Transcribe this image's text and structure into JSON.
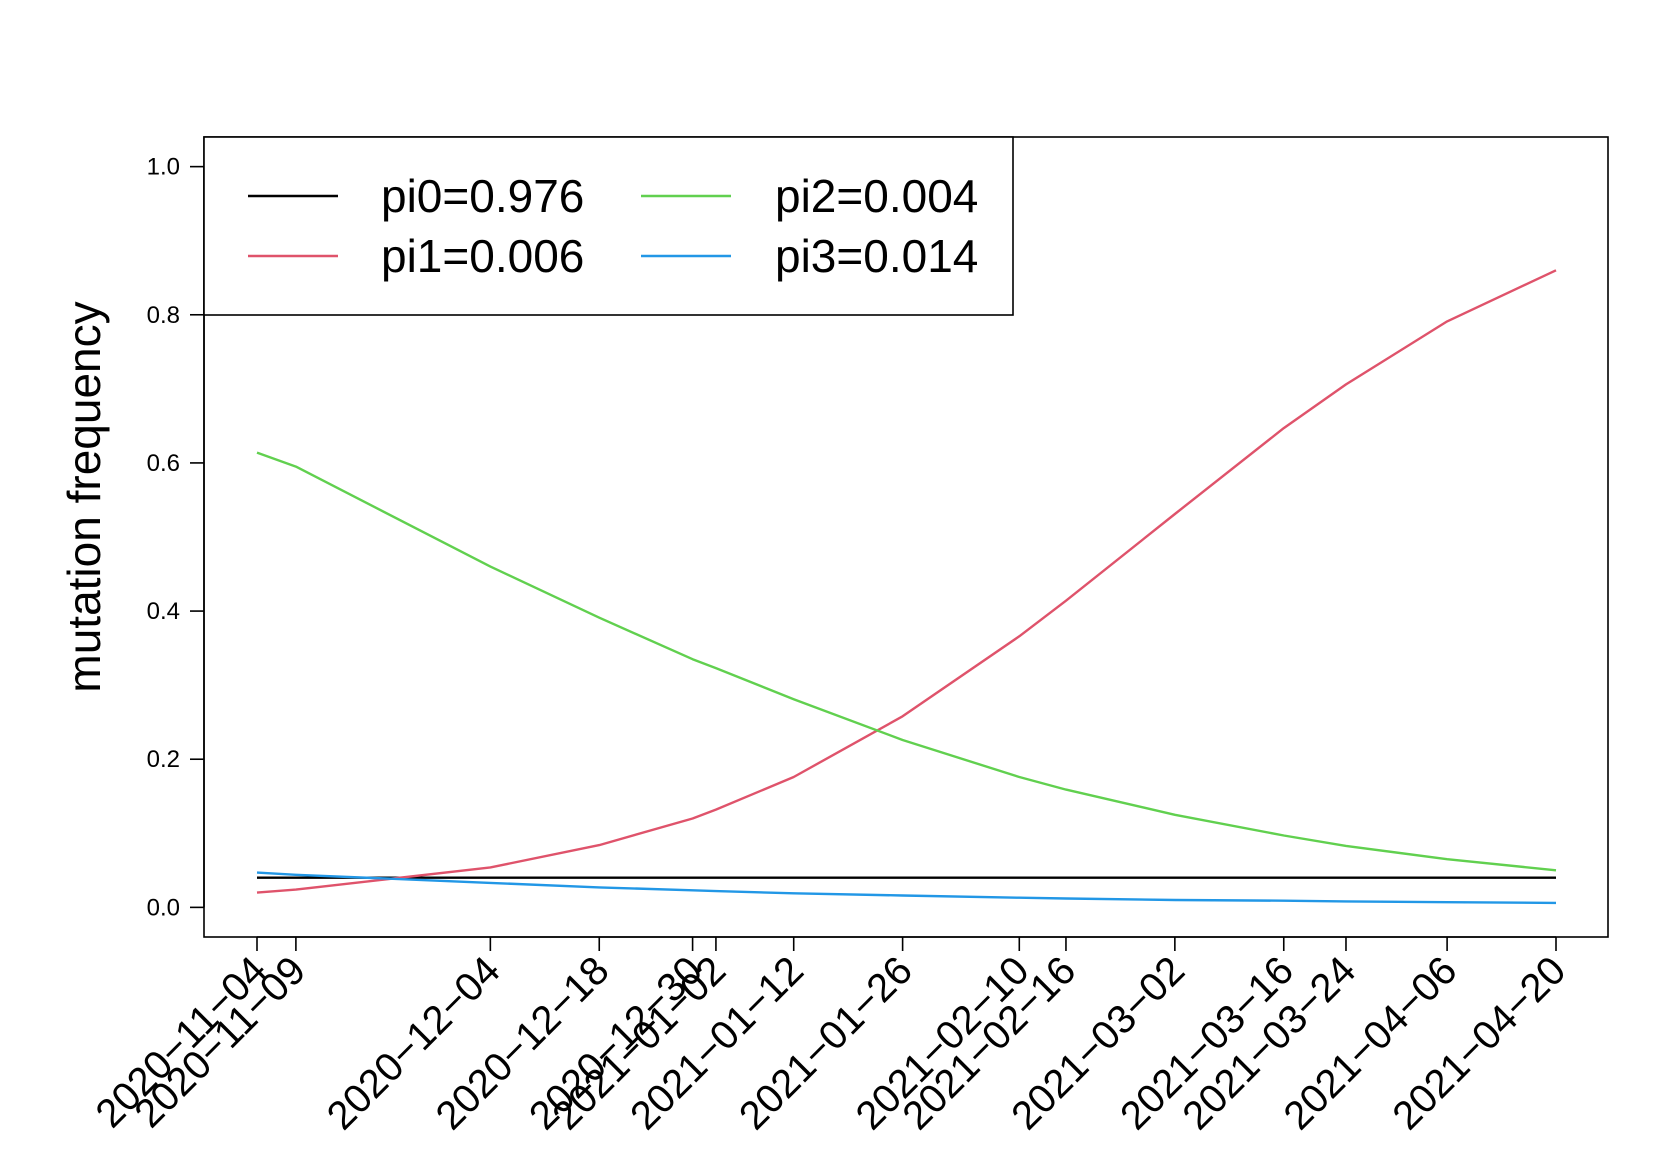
{
  "chart_data": {
    "type": "line",
    "title": "",
    "xlabel": "",
    "ylabel": "mutation frequency",
    "ylim": [
      -0.04,
      1.04
    ],
    "yticks": [
      "0.0",
      "0.2",
      "0.4",
      "0.6",
      "0.8",
      "1.0"
    ],
    "grid": false,
    "legend_position": "top-left",
    "x": [
      "2020-11-04",
      "2020-11-09",
      "2020-12-04",
      "2020-12-18",
      "2020-12-30",
      "2021-01-02",
      "2021-01-12",
      "2021-01-26",
      "2021-02-10",
      "2021-02-16",
      "2021-03-02",
      "2021-03-16",
      "2021-03-24",
      "2021-04-06",
      "2021-04-20"
    ],
    "series": [
      {
        "name": "pi0=0.976",
        "color": "#000000",
        "values": [
          0.04,
          0.04,
          0.04,
          0.04,
          0.04,
          0.04,
          0.04,
          0.04,
          0.04,
          0.04,
          0.04,
          0.04,
          0.04,
          0.04,
          0.04
        ]
      },
      {
        "name": "pi1=0.006",
        "color": "#DF536B",
        "values": [
          0.02,
          0.024,
          0.054,
          0.084,
          0.12,
          0.132,
          0.176,
          0.258,
          0.366,
          0.414,
          0.531,
          0.647,
          0.706,
          0.791,
          0.86
        ]
      },
      {
        "name": "pi2=0.004",
        "color": "#61D04F",
        "values": [
          0.614,
          0.595,
          0.46,
          0.391,
          0.335,
          0.323,
          0.281,
          0.226,
          0.176,
          0.159,
          0.125,
          0.097,
          0.083,
          0.065,
          0.05
        ]
      },
      {
        "name": "pi3=0.014",
        "color": "#2297E6",
        "values": [
          0.047,
          0.044,
          0.033,
          0.027,
          0.023,
          0.022,
          0.019,
          0.016,
          0.013,
          0.012,
          0.01,
          0.009,
          0.008,
          0.007,
          0.006
        ]
      }
    ]
  }
}
